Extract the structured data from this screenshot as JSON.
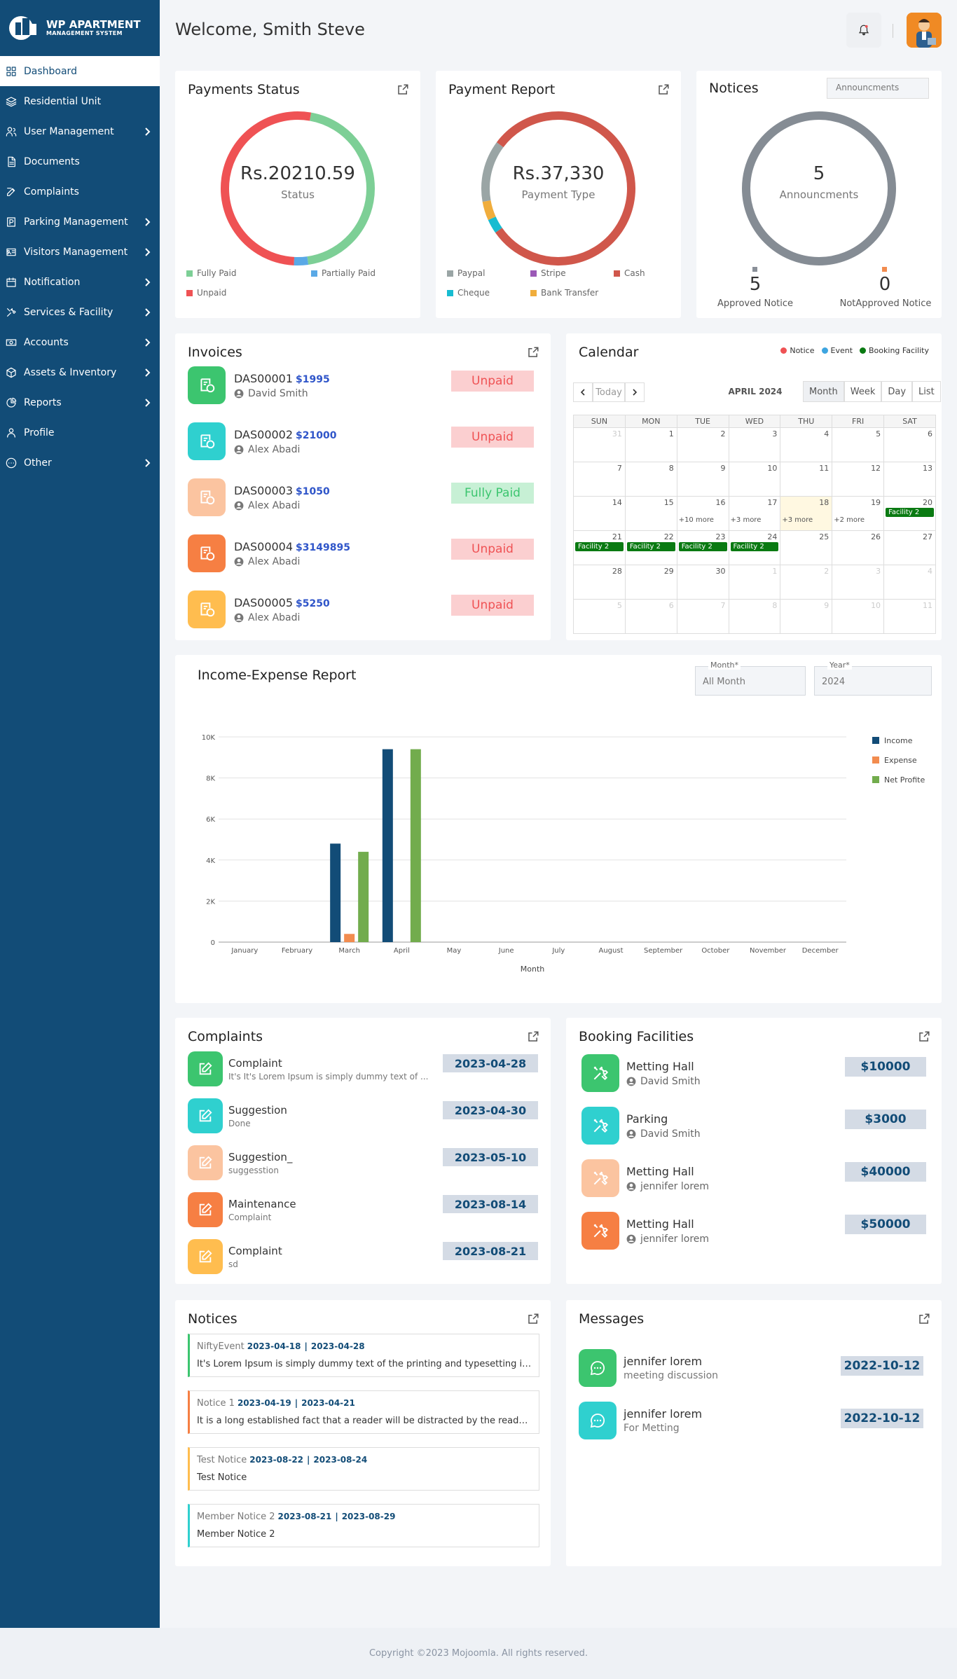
{
  "brand": {
    "line1": "WP APARTMENT",
    "line2": "MANAGEMENT SYSTEM"
  },
  "sidebar": {
    "items": [
      {
        "label": "Dashboard",
        "icon": "grid-icon",
        "active": true,
        "arrow": false
      },
      {
        "label": "Residential Unit",
        "icon": "layers-icon",
        "arrow": false
      },
      {
        "label": "User Management",
        "icon": "users-icon",
        "arrow": true
      },
      {
        "label": "Documents",
        "icon": "document-icon",
        "arrow": false
      },
      {
        "label": "Complaints",
        "icon": "edit-icon",
        "arrow": false
      },
      {
        "label": "Parking Management",
        "icon": "parking-icon",
        "arrow": true
      },
      {
        "label": "Visitors Management",
        "icon": "id-card-icon",
        "arrow": true
      },
      {
        "label": "Notification",
        "icon": "calendar-icon",
        "arrow": true
      },
      {
        "label": "Services & Facility",
        "icon": "tools-icon",
        "arrow": true
      },
      {
        "label": "Accounts",
        "icon": "money-icon",
        "arrow": true
      },
      {
        "label": "Assets & Inventory",
        "icon": "box-icon",
        "arrow": true
      },
      {
        "label": "Reports",
        "icon": "pie-icon",
        "arrow": true
      },
      {
        "label": "Profile",
        "icon": "user-icon",
        "arrow": false
      },
      {
        "label": "Other",
        "icon": "dots-icon",
        "arrow": true
      }
    ]
  },
  "header": {
    "welcome": "Welcome, Smith Steve"
  },
  "payments_status": {
    "title": "Payments Status",
    "total": "Rs.20210.59",
    "caption": "Status",
    "legend": [
      {
        "label": "Fully Paid",
        "color": "#7dcf96"
      },
      {
        "label": "Partially Paid",
        "color": "#5aa9e6"
      },
      {
        "label": "Unpaid",
        "color": "#ef5254"
      }
    ],
    "segments": [
      0.45,
      0.03,
      0.52
    ]
  },
  "payment_report": {
    "title": "Payment Report",
    "total": "Rs.37,330",
    "caption": "Payment Type",
    "legend": [
      {
        "label": "Paypal",
        "color": "#9aa5a5"
      },
      {
        "label": "Stripe",
        "color": "#9b59b6"
      },
      {
        "label": "Cash",
        "color": "#d0574b"
      },
      {
        "label": "Cheque",
        "color": "#17bcd1"
      },
      {
        "label": "Bank Transfer",
        "color": "#f0ad3c"
      }
    ],
    "segments": [
      0.13,
      0.0,
      0.8,
      0.03,
      0.04
    ]
  },
  "notices_summary": {
    "title": "Notices",
    "select": "Announcments",
    "count": "5",
    "caption": "Announcments",
    "approved_label": "Approved Notice",
    "approved_count": "5",
    "approved_color": "#8a9099",
    "not_approved_label": "NotApproved Notice",
    "not_approved_count": "0",
    "not_approved_color": "#f28c4f"
  },
  "invoices": {
    "title": "Invoices",
    "items": [
      {
        "id": "DAS00001",
        "amount": "$1995",
        "name": "David Smith",
        "status": "Unpaid",
        "color": "#3cc56f"
      },
      {
        "id": "DAS00002",
        "amount": "$21000",
        "name": "Alex Abadi",
        "status": "Unpaid",
        "color": "#2fd0cf"
      },
      {
        "id": "DAS00003",
        "amount": "$1050",
        "name": "Alex Abadi",
        "status": "Fully Paid",
        "color": "#fbc4a0"
      },
      {
        "id": "DAS00004",
        "amount": "$3149895",
        "name": "Alex Abadi",
        "status": "Unpaid",
        "color": "#f67f43"
      },
      {
        "id": "DAS00005",
        "amount": "$5250",
        "name": "Alex Abadi",
        "status": "Unpaid",
        "color": "#ffbd4f"
      }
    ]
  },
  "calendar": {
    "title": "Calendar",
    "legend": [
      {
        "label": "Notice",
        "color": "#ef5254"
      },
      {
        "label": "Event",
        "color": "#3da5e0"
      },
      {
        "label": "Booking Facility",
        "color": "#0a7a12"
      }
    ],
    "today_label": "Today",
    "month_label": "APRIL 2024",
    "views": [
      "Month",
      "Week",
      "Day",
      "List"
    ],
    "days": [
      "SUN",
      "MON",
      "TUE",
      "WED",
      "THU",
      "FRI",
      "SAT"
    ],
    "weeks": [
      [
        {
          "d": "31",
          "om": true
        },
        {
          "d": "1"
        },
        {
          "d": "2"
        },
        {
          "d": "3"
        },
        {
          "d": "4"
        },
        {
          "d": "5"
        },
        {
          "d": "6"
        }
      ],
      [
        {
          "d": "7"
        },
        {
          "d": "8"
        },
        {
          "d": "9"
        },
        {
          "d": "10"
        },
        {
          "d": "11"
        },
        {
          "d": "12"
        },
        {
          "d": "13"
        }
      ],
      [
        {
          "d": "14"
        },
        {
          "d": "15"
        },
        {
          "d": "16",
          "more": "+10 more"
        },
        {
          "d": "17",
          "more": "+3 more"
        },
        {
          "d": "18",
          "more": "+3 more",
          "today": true
        },
        {
          "d": "19",
          "more": "+2 more"
        },
        {
          "d": "20",
          "ev": "Facility 2"
        }
      ],
      [
        {
          "d": "21",
          "ev": "Facility 2"
        },
        {
          "d": "22",
          "ev": "Facility 2"
        },
        {
          "d": "23",
          "ev": "Facility 2"
        },
        {
          "d": "24",
          "ev": "Facility 2"
        },
        {
          "d": "25"
        },
        {
          "d": "26"
        },
        {
          "d": "27"
        }
      ],
      [
        {
          "d": "28"
        },
        {
          "d": "29"
        },
        {
          "d": "30"
        },
        {
          "d": "1",
          "om": true
        },
        {
          "d": "2",
          "om": true
        },
        {
          "d": "3",
          "om": true
        },
        {
          "d": "4",
          "om": true
        }
      ],
      [
        {
          "d": "5",
          "om": true
        },
        {
          "d": "6",
          "om": true
        },
        {
          "d": "7",
          "om": true
        },
        {
          "d": "8",
          "om": true
        },
        {
          "d": "9",
          "om": true
        },
        {
          "d": "10",
          "om": true
        },
        {
          "d": "11",
          "om": true
        }
      ]
    ]
  },
  "income_expense": {
    "title": "Income-Expense Report",
    "month_field": {
      "label": "Month*",
      "value": "All Month"
    },
    "year_field": {
      "label": "Year*",
      "value": "2024"
    }
  },
  "chart_data": {
    "type": "bar",
    "categories": [
      "January",
      "February",
      "March",
      "April",
      "May",
      "June",
      "July",
      "August",
      "September",
      "October",
      "November",
      "December"
    ],
    "series": [
      {
        "name": "Income",
        "color": "#124c77",
        "values": [
          0,
          0,
          4800,
          9400,
          0,
          0,
          0,
          0,
          0,
          0,
          0,
          0
        ]
      },
      {
        "name": "Expense",
        "color": "#f28c4f",
        "values": [
          0,
          0,
          400,
          0,
          0,
          0,
          0,
          0,
          0,
          0,
          0,
          0
        ]
      },
      {
        "name": "Net Profite",
        "color": "#72ac4d",
        "values": [
          0,
          0,
          4400,
          9400,
          0,
          0,
          0,
          0,
          0,
          0,
          0,
          0
        ]
      }
    ],
    "yticks": [
      "0",
      "2K",
      "4K",
      "6K",
      "8K",
      "10K"
    ],
    "ylim": [
      0,
      10000
    ],
    "xlabel": "Month",
    "ylabel": "",
    "legend_position": "right"
  },
  "complaints": {
    "title": "Complaints",
    "items": [
      {
        "title": "Complaint",
        "sub": "It's It's Lorem Ipsum is simply dummy text of ...",
        "date": "2023-04-28",
        "color": "#3cc56f"
      },
      {
        "title": "Suggestion",
        "sub": "Done",
        "date": "2023-04-30",
        "color": "#2fd0cf"
      },
      {
        "title": "Suggestion_",
        "sub": "suggesstion",
        "date": "2023-05-10",
        "color": "#fbc4a0"
      },
      {
        "title": "Maintenance",
        "sub": "Complaint",
        "date": "2023-08-14",
        "color": "#f67f43"
      },
      {
        "title": "Complaint",
        "sub": "sd",
        "date": "2023-08-21",
        "color": "#ffbd4f"
      }
    ]
  },
  "booking": {
    "title": "Booking Facilities",
    "items": [
      {
        "title": "Metting Hall",
        "name": "David Smith",
        "amount": "$10000",
        "color": "#3cc56f"
      },
      {
        "title": "Parking",
        "name": "David Smith",
        "amount": "$3000",
        "color": "#2fd0cf"
      },
      {
        "title": "Metting Hall",
        "name": "jennifer lorem",
        "amount": "$40000",
        "color": "#fbc4a0"
      },
      {
        "title": "Metting Hall",
        "name": "jennifer lorem",
        "amount": "$50000",
        "color": "#f67f43"
      }
    ]
  },
  "notices": {
    "title": "Notices",
    "items": [
      {
        "title": "NiftyEvent",
        "start": "2023-04-18",
        "end": "2023-04-28",
        "body": "It's Lorem Ipsum is simply dummy text of the printing and typesetting industry.",
        "color": "#3cc56f"
      },
      {
        "title": "Notice 1",
        "start": "2023-04-19",
        "end": "2023-04-21",
        "body": "It is a long established fact that a reader will be distracted by the readable content.",
        "color": "#f67f43"
      },
      {
        "title": "Test Notice",
        "start": "2023-08-22",
        "end": "2023-08-24",
        "body": "Test Notice",
        "color": "#ffbd4f"
      },
      {
        "title": "Member Notice 2",
        "start": "2023-08-21",
        "end": "2023-08-29",
        "body": "Member Notice 2",
        "color": "#2fd0cf"
      }
    ]
  },
  "messages": {
    "title": "Messages",
    "items": [
      {
        "name": "jennifer lorem",
        "sub": "meeting discussion",
        "date": "2022-10-12",
        "color": "#3cc56f"
      },
      {
        "name": "jennifer lorem",
        "sub": "For Metting",
        "date": "2022-10-12",
        "color": "#2fd0cf"
      }
    ]
  },
  "footer": {
    "text": "Copyright ©2023 Mojoomla. All rights reserved."
  }
}
